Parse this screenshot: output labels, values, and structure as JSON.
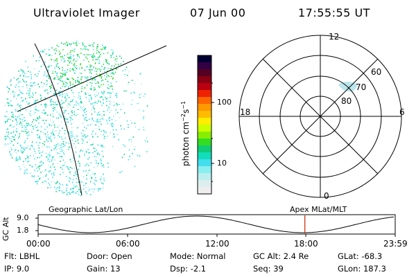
{
  "header": {
    "title": "Ultraviolet Imager",
    "date": "07 Jun 00",
    "time": "17:55:55 UT"
  },
  "colorbar": {
    "ticks": [
      "100",
      "10"
    ],
    "colors": [
      "#000033",
      "#330044",
      "#550022",
      "#880011",
      "#bb0011",
      "#ee2200",
      "#ff6600",
      "#ff9900",
      "#ffbb00",
      "#ffee00",
      "#ccff00",
      "#88ee00",
      "#33dd22",
      "#11cc77",
      "#11ddbb",
      "#44ddee",
      "#88eeee",
      "#bbeeee",
      "#ddeeee",
      "#eeeeee"
    ]
  },
  "polar": {
    "mlt_labels": {
      "top": "12",
      "right": "6",
      "bottom": "0",
      "left": "18"
    },
    "lat_labels": [
      "60",
      "70",
      "80"
    ]
  },
  "projection_labels": {
    "left": "Geographic Lat/Lon",
    "right": "Apex MLat/MLT"
  },
  "altitude_plot": {
    "y_label": "GC Alt",
    "y_ticks": [
      "9.0",
      "1.8"
    ],
    "x_ticks": [
      "00:00",
      "06:00",
      "12:00",
      "18:00",
      "23:59"
    ],
    "marker_time_hours": 17.93
  },
  "info": {
    "row1": {
      "flt": "Flt: LBHL",
      "door": "Door: Open",
      "mode": "Mode: Normal",
      "gcalt": "GC Alt: 2.4 Re",
      "glat": "GLat: -68.3"
    },
    "row2": {
      "ip": "IP:  9.0",
      "gain": "Gain: 13",
      "dsp": "Dsp:   -2.1",
      "seq": "Seq: 39",
      "glon": "GLon: 187.3"
    }
  }
}
